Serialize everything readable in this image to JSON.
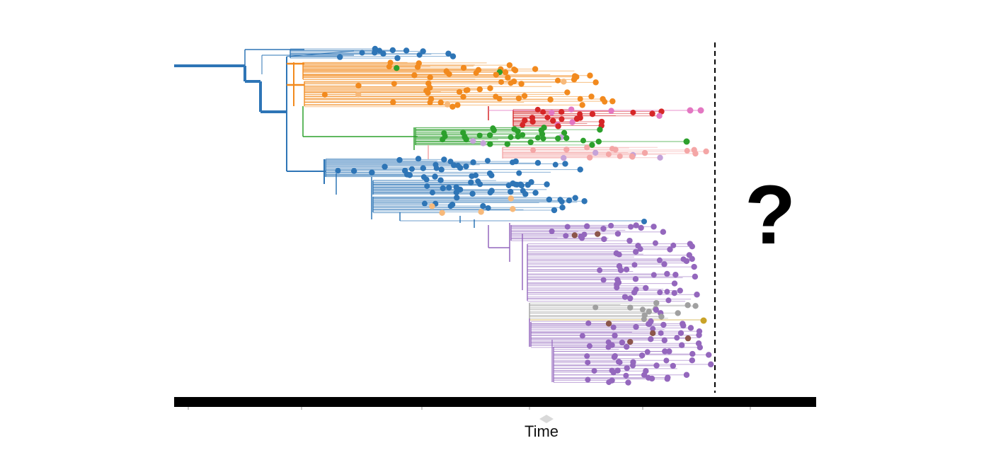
{
  "figure": {
    "axis_label": "Time",
    "unknown_marker": "?",
    "colors": {
      "blue": "#2e75b6",
      "orange": "#f28a1e",
      "green": "#2ca02c",
      "red": "#d62728",
      "pink": "#e377c2",
      "light_pink": "#f4a6a6",
      "lavender": "#c5a3d9",
      "peach": "#f7b97a",
      "purple": "#9467bd",
      "brown": "#8c564b",
      "gray": "#a0a0a0",
      "gold": "#c9a227",
      "axis": "#000000",
      "present_line": "#000000"
    },
    "clades": [
      {
        "name": "blue-top",
        "color": "blue"
      },
      {
        "name": "orange",
        "color": "orange"
      },
      {
        "name": "red",
        "color": "red"
      },
      {
        "name": "green",
        "color": "green"
      },
      {
        "name": "blue-middle",
        "color": "blue"
      },
      {
        "name": "purple",
        "color": "purple"
      }
    ]
  }
}
